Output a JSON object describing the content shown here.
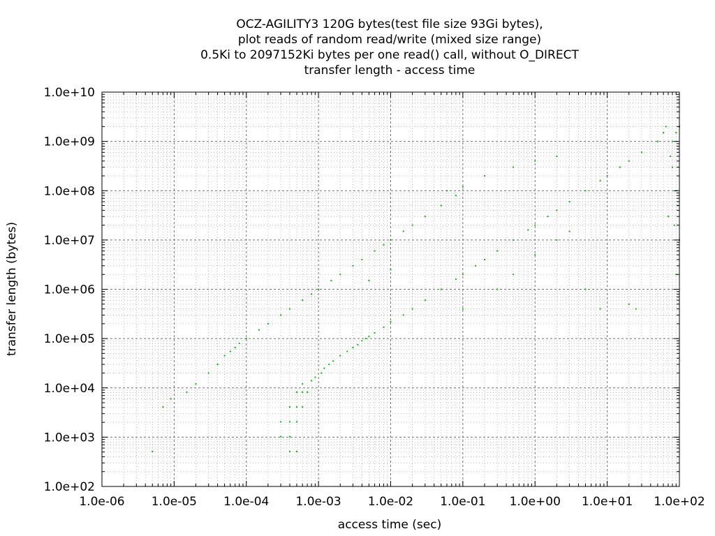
{
  "chart_data": {
    "type": "scatter",
    "title_lines": [
      "OCZ-AGILITY3 120G bytes(test file size 93Gi bytes),",
      "plot reads of random read/write (mixed size range)",
      "0.5Ki to 2097152Ki bytes per one read() call, without O_DIRECT",
      "transfer length - access time"
    ],
    "xlabel": "access time (sec)",
    "ylabel": "transfer length (bytes)",
    "x_scale": "log",
    "y_scale": "log",
    "xlim": [
      1e-06,
      100
    ],
    "ylim": [
      100,
      10000000000.0
    ],
    "x_ticks": [
      {
        "value": 1e-06,
        "label": "1.0e-06"
      },
      {
        "value": 1e-05,
        "label": "1.0e-05"
      },
      {
        "value": 0.0001,
        "label": "1.0e-04"
      },
      {
        "value": 0.001,
        "label": "1.0e-03"
      },
      {
        "value": 0.01,
        "label": "1.0e-02"
      },
      {
        "value": 0.1,
        "label": "1.0e-01"
      },
      {
        "value": 1,
        "label": "1.0e+00"
      },
      {
        "value": 10,
        "label": "1.0e+01"
      },
      {
        "value": 100,
        "label": "1.0e+02"
      }
    ],
    "y_ticks": [
      {
        "value": 100,
        "label": "1.0e+02"
      },
      {
        "value": 1000,
        "label": "1.0e+03"
      },
      {
        "value": 10000,
        "label": "1.0e+04"
      },
      {
        "value": 100000,
        "label": "1.0e+05"
      },
      {
        "value": 1000000,
        "label": "1.0e+06"
      },
      {
        "value": 10000000,
        "label": "1.0e+07"
      },
      {
        "value": 100000000,
        "label": "1.0e+08"
      },
      {
        "value": 1000000000,
        "label": "1.0e+09"
      },
      {
        "value": 10000000000,
        "label": "1.0e+10"
      }
    ],
    "grid": true,
    "legend": "none",
    "point_color": "#00c000",
    "series": [
      {
        "points": [
          [
            0.0004,
            512
          ],
          [
            0.0005,
            512
          ],
          [
            0.0003,
            1024
          ],
          [
            0.0004,
            1024
          ],
          [
            0.0003,
            2048
          ],
          [
            0.0004,
            2048
          ],
          [
            0.0005,
            2048
          ],
          [
            0.0004,
            4096
          ],
          [
            0.0005,
            4096
          ],
          [
            0.0006,
            4096
          ],
          [
            0.0005,
            8192
          ],
          [
            0.0006,
            8192
          ],
          [
            0.0007,
            8192
          ],
          [
            0.0006,
            12000
          ],
          [
            0.0008,
            14000
          ],
          [
            0.0009,
            16384
          ],
          [
            0.0011,
            20000
          ],
          [
            0.0012,
            25000
          ],
          [
            0.0014,
            30000
          ],
          [
            0.0016,
            35000
          ],
          [
            0.002,
            45000
          ],
          [
            0.0025,
            55000
          ],
          [
            0.003,
            65536
          ],
          [
            0.0035,
            75000
          ],
          [
            0.004,
            90000
          ],
          [
            0.0045,
            100000
          ],
          [
            0.005,
            110000
          ],
          [
            0.006,
            130000
          ],
          [
            0.008,
            170000
          ],
          [
            0.01,
            220000
          ],
          [
            0.015,
            300000
          ],
          [
            0.02,
            400000
          ],
          [
            0.03,
            600000
          ],
          [
            0.05,
            1000000
          ],
          [
            0.08,
            1600000
          ],
          [
            0.1,
            2000000
          ],
          [
            0.15,
            3000000
          ],
          [
            0.2,
            4000000
          ],
          [
            0.3,
            6000000
          ],
          [
            0.5,
            10000000
          ],
          [
            0.8,
            16000000
          ],
          [
            1,
            20000000
          ],
          [
            1.5,
            30000000
          ],
          [
            2,
            40000000
          ],
          [
            3,
            60000000
          ],
          [
            5,
            100000000
          ],
          [
            8,
            160000000
          ],
          [
            10,
            200000000
          ],
          [
            15,
            300000000
          ],
          [
            20,
            400000000
          ],
          [
            30,
            600000000
          ],
          [
            50,
            1000000000
          ],
          [
            60,
            1500000000
          ],
          [
            65,
            2000000000
          ],
          [
            5e-06,
            512
          ],
          [
            7e-06,
            4096
          ],
          [
            9e-06,
            6000
          ],
          [
            1.5e-05,
            8192
          ],
          [
            2e-05,
            12000
          ],
          [
            3e-05,
            20000
          ],
          [
            4e-05,
            30000
          ],
          [
            5e-05,
            45000
          ],
          [
            6e-05,
            55000
          ],
          [
            7e-05,
            65536
          ],
          [
            8e-05,
            80000
          ],
          [
            0.0001,
            100000
          ],
          [
            0.00015,
            150000
          ],
          [
            0.0002,
            200000
          ],
          [
            0.0003,
            300000
          ],
          [
            0.0004,
            400000
          ],
          [
            0.0006,
            600000
          ],
          [
            0.0008,
            800000
          ],
          [
            0.001,
            1000000
          ],
          [
            0.0015,
            1500000
          ],
          [
            0.002,
            2000000
          ],
          [
            0.003,
            3000000
          ],
          [
            0.004,
            4000000
          ],
          [
            0.006,
            6000000
          ],
          [
            0.008,
            8000000
          ],
          [
            0.01,
            10000000
          ],
          [
            0.015,
            15000000
          ],
          [
            0.02,
            20000000
          ],
          [
            0.03,
            30000000
          ],
          [
            0.05,
            50000000
          ],
          [
            0.08,
            80000000
          ],
          [
            0.06,
            100000000
          ],
          [
            0.1,
            120000000
          ],
          [
            0.2,
            200000000
          ],
          [
            0.5,
            300000000
          ],
          [
            1,
            400000000
          ],
          [
            2,
            500000000
          ],
          [
            80,
            1000000000
          ],
          [
            90,
            1500000000
          ],
          [
            100,
            2000000000
          ],
          [
            75,
            500000000
          ],
          [
            80,
            300000000
          ],
          [
            90,
            100000000
          ],
          [
            95,
            50000000
          ],
          [
            70,
            30000000
          ],
          [
            85,
            20000000
          ],
          [
            100,
            10000000
          ],
          [
            90,
            2000000
          ],
          [
            20,
            500000
          ],
          [
            25,
            400000
          ],
          [
            8,
            400000
          ],
          [
            5,
            1000000
          ],
          [
            0.1,
            400000
          ],
          [
            0.3,
            1000000
          ],
          [
            0.5,
            2000000
          ],
          [
            1,
            5000000
          ],
          [
            2,
            10000000
          ],
          [
            3,
            15000000
          ],
          [
            0.005,
            1500000
          ],
          [
            0.01,
            2500000
          ]
        ]
      }
    ]
  }
}
